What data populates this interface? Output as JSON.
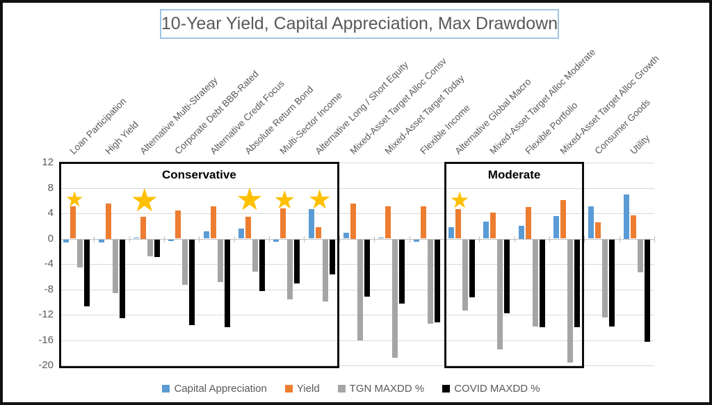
{
  "title": "10-Year Yield, Capital Appreciation, Max Drawdown",
  "chart_data": {
    "type": "bar",
    "title": "10-Year Yield, Capital Appreciation, Max Drawdown",
    "categories": [
      "Loan Participation",
      "High Yield",
      "Alternative Multi-Strategy",
      "Corporate Debt BBB-Rated",
      "Alternative Credit Focus",
      "Absolute Return Bond",
      "Multi-Sector Income",
      "Alternative Long / Short Equity",
      "Mixed-Asset Target Alloc Consv",
      "Mixed-Asset Target Today",
      "Flexible Income",
      "Alternative Global Macro",
      "Mixed-Asset Target Alloc Moderate",
      "Flexible Portfolio",
      "Mixed-Asset Target Alloc Growth",
      "Consumer Goods",
      "Utility"
    ],
    "series": [
      {
        "name": "Capital Appreciation",
        "color": "#5B9BD5",
        "values": [
          -0.5,
          -0.5,
          0.2,
          -0.3,
          1.1,
          1.6,
          -0.4,
          4.7,
          0.9,
          0.2,
          -0.4,
          1.8,
          2.7,
          2.0,
          3.6,
          5.1,
          7.0
        ]
      },
      {
        "name": "Yield",
        "color": "#ED7D31",
        "values": [
          5.1,
          5.5,
          3.5,
          4.4,
          5.1,
          3.4,
          4.8,
          1.8,
          5.5,
          5.1,
          5.1,
          4.7,
          4.1,
          5.0,
          6.1,
          2.6,
          3.7
        ]
      },
      {
        "name": "TGN MAXDD %",
        "color": "#A5A5A5",
        "values": [
          -4.4,
          -8.5,
          -2.7,
          -7.2,
          -6.7,
          -5.1,
          -9.5,
          -9.8,
          -15.9,
          -18.7,
          -13.3,
          -11.2,
          -17.4,
          -13.7,
          -19.5,
          -12.3,
          -5.2
        ]
      },
      {
        "name": "COVID MAXDD %",
        "color": "#000000",
        "values": [
          -10.6,
          -12.4,
          -2.8,
          -13.5,
          -13.9,
          -8.2,
          -7.0,
          -5.5,
          -9.0,
          -10.1,
          -13.1,
          -9.2,
          -11.7,
          -13.9,
          -13.9,
          -13.7,
          -16.2
        ]
      }
    ],
    "ylim": [
      -20,
      12
    ],
    "y_ticks": [
      12,
      8,
      4,
      0,
      -4,
      -8,
      -12,
      -16,
      -20
    ],
    "grid": true,
    "legend_position": "bottom",
    "annotations": {
      "star_color": "#FFC000",
      "stars": [
        {
          "category_index": 0,
          "size": 30
        },
        {
          "category_index": 2,
          "size": 46
        },
        {
          "category_index": 5,
          "size": 44
        },
        {
          "category_index": 6,
          "size": 36
        },
        {
          "category_index": 7,
          "size": 38
        },
        {
          "category_index": 11,
          "size": 32
        }
      ],
      "boxes": [
        {
          "label": "Conservative",
          "from_category": 0,
          "to_category": 7
        },
        {
          "label": "Moderate",
          "from_category": 11,
          "to_category": 14
        }
      ]
    }
  }
}
